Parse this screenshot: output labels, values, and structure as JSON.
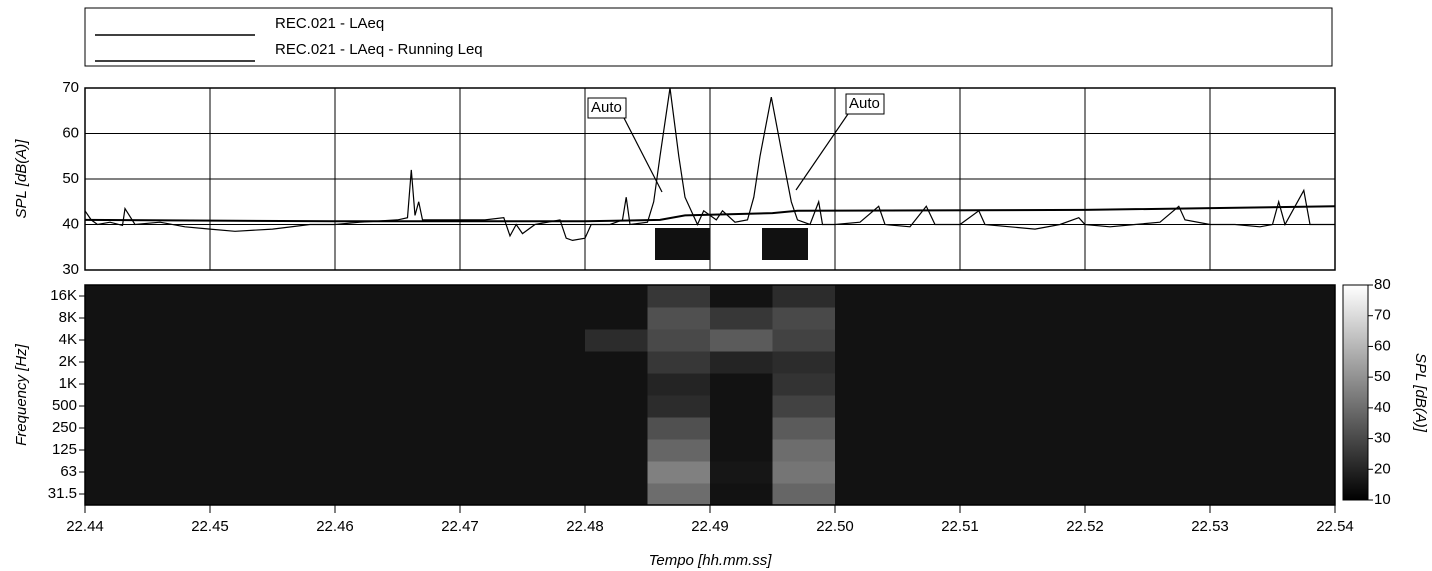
{
  "chart_data": [
    {
      "type": "line",
      "legend": "top",
      "grid": true,
      "ylabel": "SPL [dB(A)]",
      "xlim": [
        22.44,
        22.54
      ],
      "xticks": [
        22.44,
        22.45,
        22.46,
        22.47,
        22.48,
        22.49,
        {
          "value": 22.5,
          "label": "22.50"
        },
        22.51,
        22.52,
        22.53,
        22.54
      ],
      "ylim": [
        30,
        70
      ],
      "yticks": [
        30,
        40,
        50,
        60,
        70
      ],
      "annotations": [
        "Auto",
        "Auto"
      ],
      "series": [
        {
          "name": "REC.021 - LAeq",
          "color": "#000000",
          "x": [
            22.44,
            22.4405,
            22.441,
            22.442,
            22.443,
            22.4432,
            22.444,
            22.446,
            22.448,
            22.45,
            22.452,
            22.455,
            22.458,
            22.46,
            22.462,
            22.465,
            22.4658,
            22.4661,
            22.4664,
            22.4667,
            22.467,
            22.47,
            22.472,
            22.4735,
            22.474,
            22.4745,
            22.475,
            22.476,
            22.478,
            22.4785,
            22.479,
            22.48,
            22.4805,
            22.482,
            22.483,
            22.4833,
            22.4836,
            22.485,
            22.4855,
            22.486,
            22.4868,
            22.4875,
            22.488,
            22.489,
            22.4895,
            22.4905,
            22.491,
            22.492,
            22.493,
            22.4935,
            22.494,
            22.4949,
            22.4958,
            22.4965,
            22.497,
            22.498,
            22.4987,
            22.499,
            22.5,
            22.502,
            22.5035,
            22.504,
            22.506,
            22.5073,
            22.508,
            22.51,
            22.5115,
            22.512,
            22.514,
            22.516,
            22.518,
            22.5195,
            22.52,
            22.522,
            22.524,
            22.526,
            22.5275,
            22.528,
            22.53,
            22.532,
            22.534,
            22.535,
            22.5355,
            22.536,
            22.5375,
            22.538,
            22.54
          ],
          "values": [
            43,
            41,
            40,
            40.5,
            39.8,
            43.5,
            40,
            40.5,
            39.5,
            39,
            38.5,
            39,
            40,
            40,
            40.5,
            41,
            41.5,
            52,
            42,
            45,
            41,
            41,
            41,
            41.5,
            37.5,
            40,
            38,
            40,
            41,
            37,
            36.5,
            37,
            40,
            40,
            41,
            46,
            40,
            40.5,
            45,
            55,
            70,
            55,
            46,
            40,
            43,
            41,
            43,
            40.5,
            41,
            46,
            55,
            68,
            55,
            45,
            41,
            40,
            45,
            40,
            40,
            40.5,
            44,
            40,
            39.5,
            44,
            40,
            40,
            43,
            40,
            39.5,
            39,
            40,
            41.5,
            40,
            39.5,
            40,
            40.5,
            44,
            41,
            40,
            40,
            39.5,
            40,
            45,
            40,
            47.5,
            40,
            40
          ]
        },
        {
          "name": "REC.021 - LAeq - Running Leq",
          "color": "#000000",
          "x": [
            22.44,
            22.46,
            22.48,
            22.486,
            22.488,
            22.495,
            22.497,
            22.52,
            22.54
          ],
          "values": [
            41,
            40.7,
            40.7,
            41,
            42,
            42.5,
            43,
            43.2,
            44
          ]
        }
      ]
    },
    {
      "type": "heatmap",
      "xlabel": "Tempo [hh.mm.ss]",
      "ylabel": "Frequency [Hz]",
      "xlim": [
        22.44,
        22.54
      ],
      "xticks": [
        22.44,
        22.45,
        22.46,
        22.47,
        22.48,
        22.49,
        {
          "value": 22.5,
          "label": "22.50"
        },
        22.51,
        22.52,
        22.53,
        22.54
      ],
      "y_categories": [
        "31.5",
        "63",
        "125",
        "250",
        "500",
        "1K",
        "2K",
        "4K",
        "8K",
        "16K"
      ],
      "bins": [
        22.44,
        22.445,
        22.45,
        22.455,
        22.46,
        22.465,
        22.47,
        22.475,
        22.48,
        22.485,
        22.49,
        22.495,
        22.5,
        22.505,
        22.51,
        22.515,
        22.52,
        22.525,
        22.53,
        22.535,
        22.54
      ],
      "colormap": [
        "#000000",
        "#ffffff"
      ],
      "colorbar": {
        "label": "SPL [dB(A)]",
        "lim": [
          10,
          80
        ],
        "ticks": [
          10,
          20,
          30,
          40,
          50,
          60,
          70,
          80
        ]
      },
      "values": [
        [
          15,
          15,
          15,
          15,
          15,
          15,
          15,
          15,
          15,
          40,
          15,
          38,
          15,
          15,
          15,
          15,
          15,
          15,
          15,
          15
        ],
        [
          15,
          15,
          15,
          15,
          15,
          15,
          15,
          15,
          15,
          45,
          16,
          42,
          15,
          15,
          15,
          15,
          15,
          15,
          15,
          15
        ],
        [
          15,
          15,
          15,
          15,
          15,
          15,
          15,
          15,
          15,
          38,
          15,
          40,
          15,
          15,
          15,
          15,
          15,
          15,
          15,
          15
        ],
        [
          15,
          15,
          15,
          15,
          15,
          15,
          15,
          15,
          15,
          32,
          15,
          35,
          15,
          15,
          15,
          15,
          15,
          15,
          15,
          15
        ],
        [
          15,
          15,
          15,
          15,
          15,
          15,
          15,
          15,
          15,
          22,
          15,
          28,
          15,
          15,
          15,
          15,
          15,
          15,
          15,
          15
        ],
        [
          15,
          15,
          15,
          15,
          15,
          15,
          15,
          15,
          15,
          20,
          15,
          24,
          15,
          15,
          15,
          15,
          15,
          15,
          15,
          15
        ],
        [
          15,
          15,
          15,
          15,
          15,
          15,
          15,
          15,
          15,
          25,
          20,
          22,
          15,
          15,
          15,
          15,
          15,
          15,
          15,
          15
        ],
        [
          15,
          15,
          15,
          15,
          15,
          15,
          15,
          15,
          22,
          30,
          35,
          28,
          15,
          15,
          15,
          15,
          15,
          15,
          15,
          15
        ],
        [
          15,
          15,
          15,
          15,
          15,
          15,
          15,
          15,
          15,
          32,
          25,
          30,
          15,
          15,
          15,
          15,
          15,
          15,
          15,
          15
        ],
        [
          15,
          15,
          15,
          15,
          15,
          15,
          15,
          15,
          15,
          25,
          15,
          22,
          15,
          15,
          15,
          15,
          15,
          15,
          15,
          15
        ]
      ]
    }
  ]
}
